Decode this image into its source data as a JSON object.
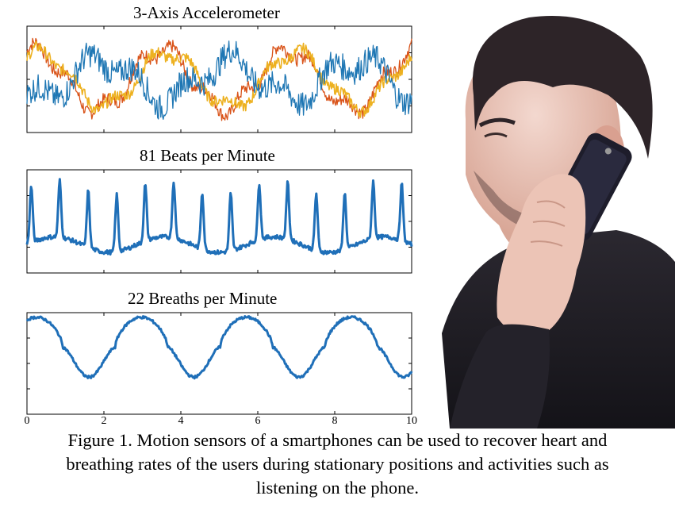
{
  "panels": [
    {
      "title": "3-Axis Accelerometer",
      "type": "line",
      "series_colors": [
        "#1f77b4",
        "#d95319",
        "#edb120"
      ]
    },
    {
      "title": "81 Beats per Minute",
      "type": "line",
      "series_colors": [
        "#1f6fb8"
      ]
    },
    {
      "title": "22 Breaths per Minute",
      "type": "line",
      "series_colors": [
        "#1f6fb8"
      ]
    }
  ],
  "chart_data": [
    {
      "type": "line",
      "title": "3-Axis Accelerometer",
      "xlim": [
        0,
        10
      ],
      "series": [
        {
          "color": "#1f77b4"
        },
        {
          "color": "#d95319"
        },
        {
          "color": "#edb120"
        }
      ]
    },
    {
      "type": "line",
      "title": "81 Beats per Minute",
      "xlim": [
        0,
        10
      ],
      "rate_per_minute": 81,
      "series": [
        {
          "color": "#1f6fb8"
        }
      ]
    },
    {
      "type": "line",
      "title": "22 Breaths per Minute",
      "xlim": [
        0,
        10
      ],
      "rate_per_minute": 22,
      "xticks": [
        "0",
        "2",
        "4",
        "6",
        "8",
        "10"
      ],
      "series": [
        {
          "color": "#1f6fb8"
        }
      ]
    }
  ],
  "caption": {
    "line1": "Figure 1. Motion sensors of a smartphones can be used to recover heart and",
    "line2": "breathing rates of the users during stationary positions and activities such as",
    "line3": "listening on the phone."
  },
  "photo": {
    "icon": "man-on-phone-photo"
  }
}
